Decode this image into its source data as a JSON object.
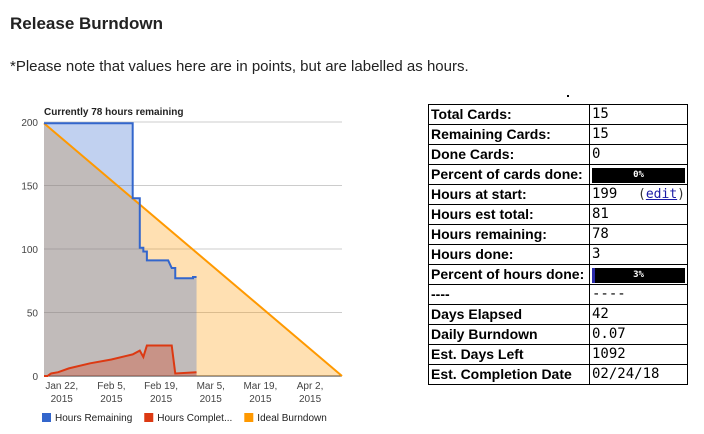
{
  "page": {
    "title": "Release Burndown",
    "note": "*Please note that values here are in points, but are labelled as hours."
  },
  "chart_data": {
    "type": "area",
    "title": "Currently 78 hours remaining",
    "ylim": [
      0,
      200
    ],
    "yticks": [
      0,
      50,
      100,
      150,
      200
    ],
    "xlim": [
      "2015-01-17",
      "2015-04-11"
    ],
    "xticks": [
      {
        "date": "2015-01-22",
        "label1": "Jan 22,",
        "label2": "2015"
      },
      {
        "date": "2015-02-05",
        "label1": "Feb 5,",
        "label2": "2015"
      },
      {
        "date": "2015-02-19",
        "label1": "Feb 19,",
        "label2": "2015"
      },
      {
        "date": "2015-03-05",
        "label1": "Mar 5,",
        "label2": "2015"
      },
      {
        "date": "2015-03-19",
        "label1": "Mar 19,",
        "label2": "2015"
      },
      {
        "date": "2015-04-02",
        "label1": "Apr 2,",
        "label2": "2015"
      }
    ],
    "series": [
      {
        "name": "Hours Remaining",
        "color": "#3366cc",
        "points": [
          [
            "2015-01-17",
            199
          ],
          [
            "2015-02-11",
            199
          ],
          [
            "2015-02-11",
            140
          ],
          [
            "2015-02-13",
            140
          ],
          [
            "2015-02-13",
            101
          ],
          [
            "2015-02-14",
            101
          ],
          [
            "2015-02-14",
            98
          ],
          [
            "2015-02-15",
            98
          ],
          [
            "2015-02-15",
            91
          ],
          [
            "2015-02-21",
            91
          ],
          [
            "2015-02-22",
            85
          ],
          [
            "2015-02-23",
            85
          ],
          [
            "2015-02-23",
            77
          ],
          [
            "2015-02-28",
            77
          ],
          [
            "2015-02-28",
            78
          ],
          [
            "2015-03-01",
            78
          ]
        ]
      },
      {
        "name": "Hours Complet...",
        "color": "#dc3912",
        "points": [
          [
            "2015-01-17",
            0
          ],
          [
            "2015-01-18",
            0
          ],
          [
            "2015-01-19",
            2
          ],
          [
            "2015-01-21",
            3
          ],
          [
            "2015-01-24",
            6
          ],
          [
            "2015-01-30",
            10
          ],
          [
            "2015-02-05",
            13
          ],
          [
            "2015-02-11",
            17
          ],
          [
            "2015-02-13",
            20
          ],
          [
            "2015-02-14",
            15
          ],
          [
            "2015-02-15",
            24
          ],
          [
            "2015-02-22",
            24
          ],
          [
            "2015-02-23",
            2
          ],
          [
            "2015-03-01",
            3
          ]
        ]
      },
      {
        "name": "Ideal Burndown",
        "color": "#ff9900",
        "points": [
          [
            "2015-01-17",
            199
          ],
          [
            "2015-04-11",
            0
          ]
        ]
      }
    ],
    "legend_position": "bottom"
  },
  "stats": [
    {
      "label": "Total Cards:",
      "value": "15"
    },
    {
      "label": "Remaining Cards:",
      "value": "15"
    },
    {
      "label": "Done Cards:",
      "value": "0"
    },
    {
      "label": "Percent of cards done:",
      "bar_text": "0%",
      "bar_fraction": 0.0
    },
    {
      "label": "Hours at start:",
      "value": "199",
      "link": "edit"
    },
    {
      "label": "Hours est total:",
      "value": "81"
    },
    {
      "label": "Hours remaining:",
      "value": "78"
    },
    {
      "label": "Hours done:",
      "value": "3"
    },
    {
      "label": "Percent of hours done:",
      "bar_text": "3%",
      "bar_fraction": 0.03
    },
    {
      "label": "----",
      "value": "----"
    },
    {
      "label": "Days Elapsed",
      "value": "42"
    },
    {
      "label": "Daily Burndown",
      "value": "0.07"
    },
    {
      "label": "Est. Days Left",
      "value": "1092"
    },
    {
      "label": "Est. Completion Date",
      "value": "02/24/18"
    }
  ]
}
